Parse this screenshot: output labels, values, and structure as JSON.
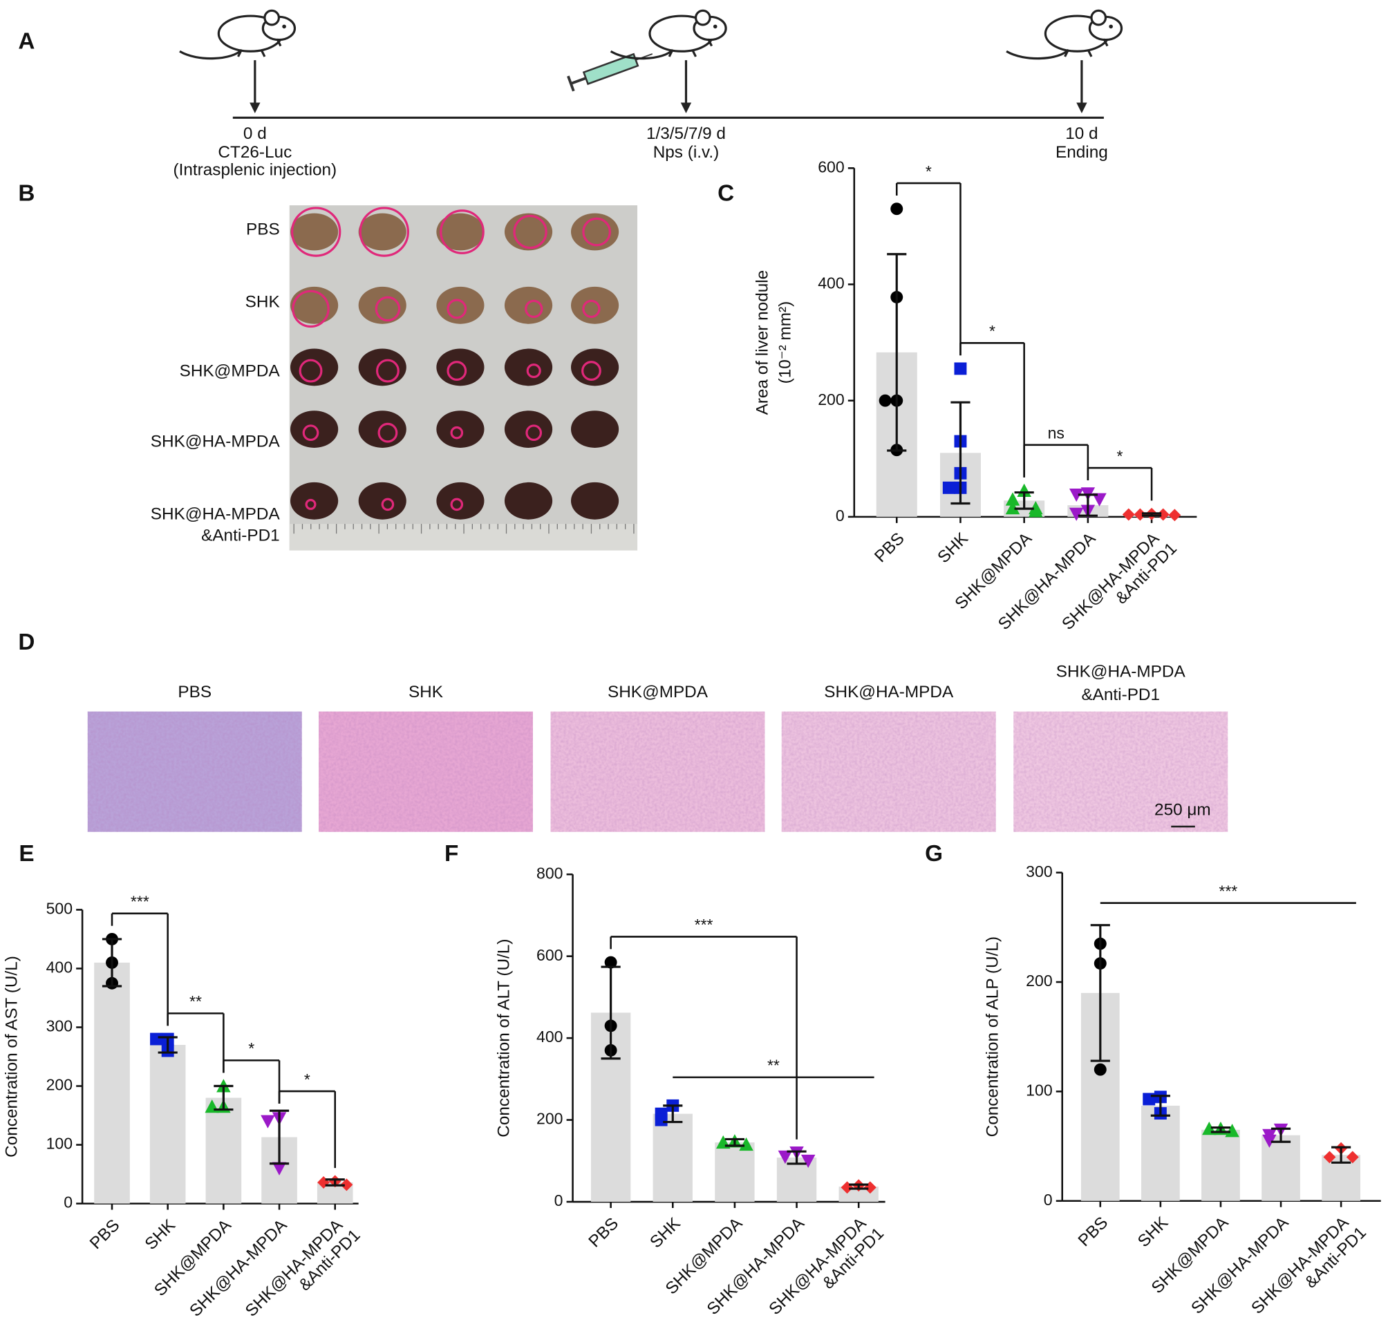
{
  "panel_labels": [
    "A",
    "B",
    "C",
    "D",
    "E",
    "F",
    "G"
  ],
  "timeline": {
    "steps": [
      {
        "day": "0 d",
        "lines": [
          "CT26-Luc",
          "(Intrasplenic injection)"
        ]
      },
      {
        "day": "1/3/5/7/9 d",
        "lines": [
          "Nps (i.v.)"
        ]
      },
      {
        "day": "10 d",
        "lines": [
          "Ending"
        ]
      }
    ]
  },
  "photo": {
    "row_labels": [
      [
        "PBS"
      ],
      [
        "SHK"
      ],
      [
        "SHK@MPDA"
      ],
      [
        "SHK@HA-MPDA"
      ],
      [
        "SHK@HA-MPDA",
        "&Anti-PD1"
      ]
    ]
  },
  "histology": {
    "titles": [
      [
        "PBS"
      ],
      [
        "SHK"
      ],
      [
        "SHK@MPDA"
      ],
      [
        "SHK@HA-MPDA"
      ],
      [
        "SHK@HA-MPDA",
        "&Anti-PD1"
      ]
    ],
    "scale_bar": "250 μm"
  },
  "chart_data": [
    {
      "type": "bar",
      "ylabel": [
        "Area of liver nodule",
        "(10⁻² mm²)"
      ],
      "categories": [
        [
          "PBS"
        ],
        [
          "SHK"
        ],
        [
          "SHK@MPDA"
        ],
        [
          "SHK@HA-MPDA"
        ],
        [
          "SHK@HA-MPDA",
          "&Anti-PD1"
        ]
      ],
      "values": [
        283,
        110,
        28,
        20,
        4
      ],
      "errors": [
        169,
        87,
        14,
        18,
        2
      ],
      "points": [
        [
          530,
          378,
          200,
          200,
          115
        ],
        [
          255,
          130,
          75,
          50,
          50
        ],
        [
          45,
          30,
          15,
          15,
          10
        ],
        [
          40,
          38,
          30,
          10,
          5
        ],
        [
          5,
          4,
          4,
          4,
          3
        ]
      ],
      "colors": [
        "#000000",
        "#0a1fd6",
        "#19b82a",
        "#9b19c8",
        "#ee3030"
      ],
      "markers": [
        "circle",
        "square",
        "triangle",
        "triangle-down",
        "diamond"
      ],
      "bar_color": "#dcdcdc",
      "ylim": [
        0,
        600
      ],
      "yticks": [
        0,
        200,
        400,
        600
      ],
      "brackets": [
        {
          "pair": [
            0,
            1
          ],
          "label": "*",
          "legs": true
        },
        {
          "pair": [
            1,
            2
          ],
          "label": "*",
          "legs": true
        },
        {
          "pair": [
            2,
            3
          ],
          "label": "ns",
          "legs": true
        },
        {
          "pair": [
            3,
            4
          ],
          "label": "*",
          "legs": true
        }
      ]
    },
    {
      "type": "bar",
      "ylabel": [
        "Concentration of AST (U/L)"
      ],
      "categories": [
        [
          "PBS"
        ],
        [
          "SHK"
        ],
        [
          "SHK@MPDA"
        ],
        [
          "SHK@HA-MPDA"
        ],
        [
          "SHK@HA-MPDA",
          "&Anti-PD1"
        ]
      ],
      "values": [
        410,
        270,
        180,
        113,
        36
      ],
      "errors": [
        40,
        13,
        20,
        45,
        5
      ],
      "points": [
        [
          450,
          410,
          375
        ],
        [
          280,
          280,
          260
        ],
        [
          200,
          165,
          165
        ],
        [
          145,
          140,
          60
        ],
        [
          38,
          36,
          32
        ]
      ],
      "colors": [
        "#000000",
        "#0a1fd6",
        "#19b82a",
        "#9b19c8",
        "#ee3030"
      ],
      "markers": [
        "circle",
        "square",
        "triangle",
        "triangle-down",
        "diamond"
      ],
      "bar_color": "#dcdcdc",
      "ylim": [
        0,
        500
      ],
      "yticks": [
        0,
        100,
        200,
        300,
        400,
        500
      ],
      "brackets": [
        {
          "pair": [
            0,
            1
          ],
          "label": "***",
          "legs": true
        },
        {
          "pair": [
            1,
            2
          ],
          "label": "**",
          "legs": true
        },
        {
          "pair": [
            2,
            3
          ],
          "label": "*",
          "legs": true
        },
        {
          "pair": [
            3,
            4
          ],
          "label": "*",
          "legs": true
        }
      ]
    },
    {
      "type": "bar",
      "ylabel": [
        "Concentration of ALT (U/L)"
      ],
      "categories": [
        [
          "PBS"
        ],
        [
          "SHK"
        ],
        [
          "SHK@MPDA"
        ],
        [
          "SHK@HA-MPDA"
        ],
        [
          "SHK@HA-MPDA",
          "&Anti-PD1"
        ]
      ],
      "values": [
        462,
        215,
        145,
        108,
        37
      ],
      "errors": [
        112,
        20,
        8,
        15,
        5
      ],
      "points": [
        [
          585,
          430,
          370
        ],
        [
          235,
          215,
          200
        ],
        [
          148,
          145,
          140
        ],
        [
          120,
          110,
          100
        ],
        [
          40,
          35,
          35
        ]
      ],
      "colors": [
        "#000000",
        "#0a1fd6",
        "#19b82a",
        "#9b19c8",
        "#ee3030"
      ],
      "markers": [
        "circle",
        "square",
        "triangle",
        "triangle-down",
        "diamond"
      ],
      "bar_color": "#dcdcdc",
      "ylim": [
        0,
        800
      ],
      "yticks": [
        0,
        200,
        400,
        600,
        800
      ],
      "brackets": [
        {
          "pair": [
            0,
            3
          ],
          "label": "***",
          "legs": true
        },
        {
          "pair": [
            1,
            4
          ],
          "label": "**",
          "legs": false
        }
      ]
    },
    {
      "type": "bar",
      "ylabel": [
        "Concentration of ALP (U/L)"
      ],
      "categories": [
        [
          "PBS"
        ],
        [
          "SHK"
        ],
        [
          "SHK@MPDA"
        ],
        [
          "SHK@HA-MPDA"
        ],
        [
          "SHK@HA-MPDA",
          "&Anti-PD1"
        ]
      ],
      "values": [
        190,
        87,
        65,
        60,
        42
      ],
      "errors": [
        62,
        9,
        2,
        6,
        7
      ],
      "points": [
        [
          235,
          217,
          120
        ],
        [
          95,
          93,
          80
        ],
        [
          66,
          66,
          64
        ],
        [
          65,
          60,
          55
        ],
        [
          48,
          40,
          40
        ]
      ],
      "colors": [
        "#000000",
        "#0a1fd6",
        "#19b82a",
        "#9b19c8",
        "#ee3030"
      ],
      "markers": [
        "circle",
        "square",
        "triangle",
        "triangle-down",
        "diamond"
      ],
      "bar_color": "#dcdcdc",
      "ylim": [
        0,
        300
      ],
      "yticks": [
        0,
        100,
        200,
        300
      ],
      "brackets": [
        {
          "pair": [
            0,
            4
          ],
          "label": "***",
          "legs": false
        }
      ]
    }
  ]
}
